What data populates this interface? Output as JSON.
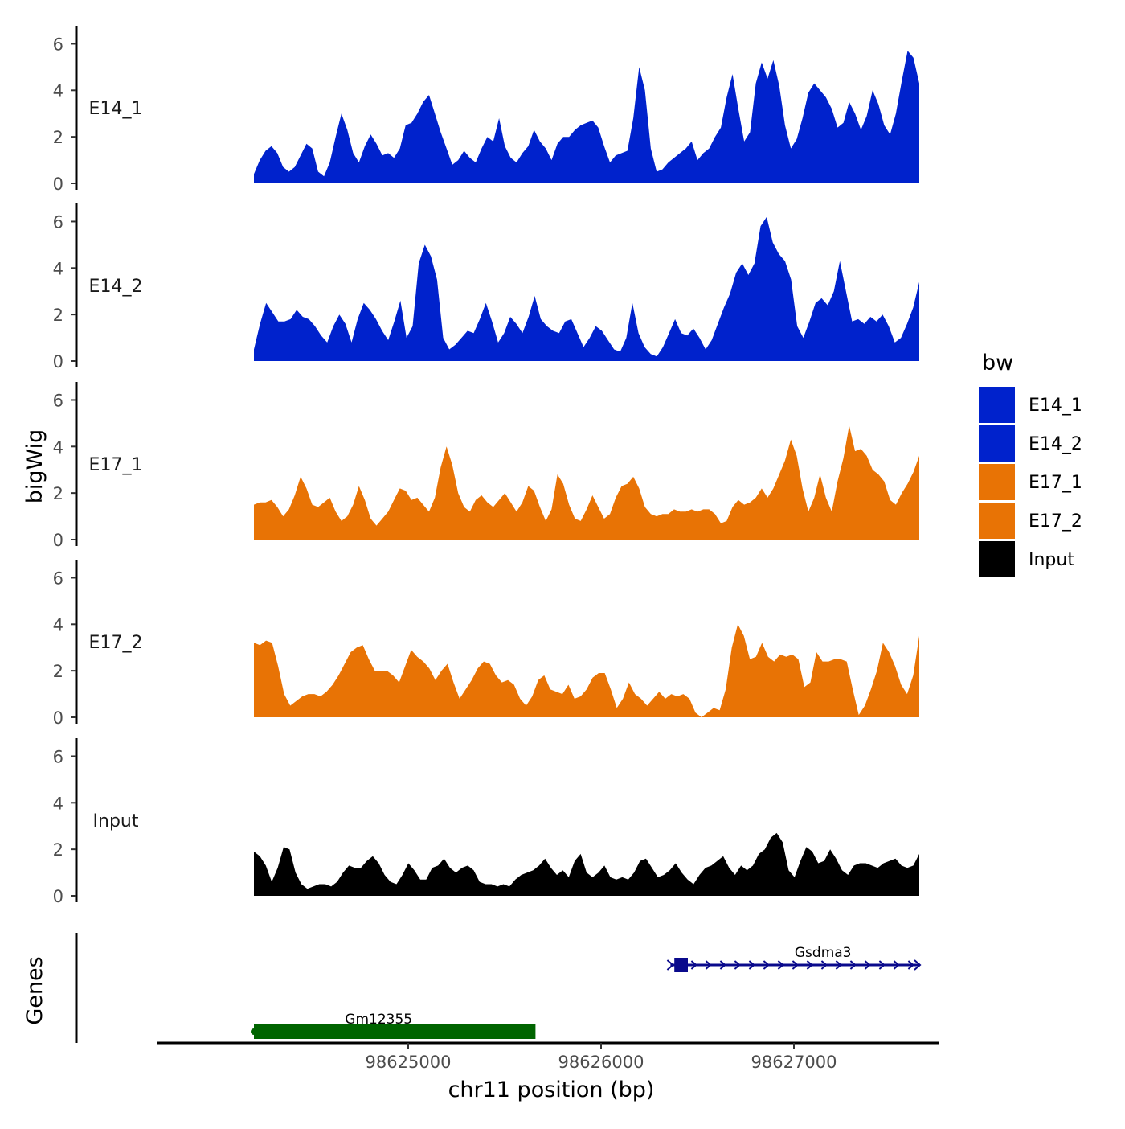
{
  "chart_data": {
    "type": "area",
    "ylabel": "bigWig",
    "xlabel": "chr11 position (bp)",
    "y_ticks": [
      "0",
      "2",
      "4",
      "6"
    ],
    "ylim": [
      0,
      6.5
    ],
    "x_ticks": [
      "98625000",
      "98626000",
      "98627000"
    ],
    "x_tick_values": [
      98625000,
      98626000,
      98627000
    ],
    "xlim": [
      98623700,
      98627750
    ],
    "region": [
      98624200,
      98627650
    ],
    "legend": {
      "title": "bw",
      "items": [
        {
          "label": "E14_1",
          "color": "#0022cc"
        },
        {
          "label": "E14_2",
          "color": "#0022cc"
        },
        {
          "label": "E17_1",
          "color": "#e87305"
        },
        {
          "label": "E17_2",
          "color": "#e87305"
        },
        {
          "label": "Input",
          "color": "#000000"
        }
      ]
    },
    "tracks": [
      {
        "name": "E14_1",
        "color": "#0022cc",
        "values": [
          0.4,
          1.0,
          1.4,
          1.6,
          1.3,
          0.7,
          0.5,
          0.7,
          1.2,
          1.7,
          1.5,
          0.5,
          0.3,
          0.9,
          2.0,
          3.0,
          2.3,
          1.3,
          0.9,
          1.6,
          2.1,
          1.7,
          1.2,
          1.3,
          1.1,
          1.5,
          2.5,
          2.6,
          3.0,
          3.5,
          3.8,
          3.0,
          2.2,
          1.5,
          0.8,
          1.0,
          1.4,
          1.1,
          0.9,
          1.5,
          2.0,
          1.8,
          2.8,
          1.6,
          1.1,
          0.9,
          1.3,
          1.6,
          2.3,
          1.8,
          1.5,
          1.0,
          1.7,
          2.0,
          2.0,
          2.3,
          2.5,
          2.6,
          2.7,
          2.4,
          1.6,
          0.9,
          1.2,
          1.3,
          1.4,
          2.8,
          5.0,
          4.0,
          1.5,
          0.5,
          0.6,
          0.9,
          1.1,
          1.3,
          1.5,
          1.8,
          1.0,
          1.3,
          1.5,
          2.0,
          2.4,
          3.7,
          4.7,
          3.2,
          1.8,
          2.2,
          4.3,
          5.2,
          4.5,
          5.3,
          4.2,
          2.5,
          1.5,
          1.9,
          2.8,
          3.9,
          4.3,
          4.0,
          3.7,
          3.2,
          2.4,
          2.6,
          3.5,
          3.0,
          2.3,
          2.9,
          4.0,
          3.4,
          2.5,
          2.1,
          3.0,
          4.4,
          5.7,
          5.4,
          4.3
        ]
      },
      {
        "name": "E14_2",
        "color": "#0022cc",
        "values": [
          0.5,
          1.6,
          2.5,
          2.1,
          1.7,
          1.7,
          1.8,
          2.2,
          1.9,
          1.8,
          1.5,
          1.1,
          0.8,
          1.5,
          2.0,
          1.6,
          0.8,
          1.8,
          2.5,
          2.2,
          1.8,
          1.3,
          0.9,
          1.7,
          2.6,
          1.0,
          1.5,
          4.2,
          5.0,
          4.5,
          3.5,
          1.0,
          0.5,
          0.7,
          1.0,
          1.3,
          1.2,
          1.8,
          2.5,
          1.7,
          0.8,
          1.2,
          1.9,
          1.6,
          1.2,
          1.9,
          2.8,
          1.8,
          1.5,
          1.3,
          1.2,
          1.7,
          1.8,
          1.2,
          0.6,
          1.0,
          1.5,
          1.3,
          0.9,
          0.5,
          0.4,
          1.0,
          2.5,
          1.2,
          0.6,
          0.3,
          0.2,
          0.6,
          1.2,
          1.8,
          1.2,
          1.1,
          1.4,
          1.0,
          0.5,
          0.9,
          1.6,
          2.3,
          2.9,
          3.8,
          4.2,
          3.7,
          4.2,
          5.8,
          6.2,
          5.1,
          4.6,
          4.3,
          3.5,
          1.5,
          1.0,
          1.7,
          2.5,
          2.7,
          2.4,
          3.0,
          4.3,
          3.0,
          1.7,
          1.8,
          1.6,
          1.9,
          1.7,
          2.0,
          1.5,
          0.8,
          1.0,
          1.6,
          2.3,
          3.4
        ]
      },
      {
        "name": "E17_1",
        "color": "#e87305",
        "values": [
          1.5,
          1.6,
          1.6,
          1.7,
          1.4,
          1.0,
          1.3,
          1.9,
          2.7,
          2.2,
          1.5,
          1.4,
          1.6,
          1.8,
          1.2,
          0.8,
          1.0,
          1.5,
          2.3,
          1.7,
          0.9,
          0.6,
          0.9,
          1.2,
          1.7,
          2.2,
          2.1,
          1.7,
          1.8,
          1.5,
          1.2,
          1.8,
          3.1,
          4.0,
          3.2,
          2.0,
          1.4,
          1.2,
          1.7,
          1.9,
          1.6,
          1.4,
          1.7,
          2.0,
          1.6,
          1.2,
          1.6,
          2.3,
          2.1,
          1.4,
          0.8,
          1.3,
          2.8,
          2.4,
          1.5,
          0.9,
          0.8,
          1.3,
          1.9,
          1.4,
          0.9,
          1.1,
          1.8,
          2.3,
          2.4,
          2.7,
          2.2,
          1.4,
          1.1,
          1.0,
          1.1,
          1.1,
          1.3,
          1.2,
          1.2,
          1.3,
          1.2,
          1.3,
          1.3,
          1.1,
          0.7,
          0.8,
          1.4,
          1.7,
          1.5,
          1.6,
          1.8,
          2.2,
          1.8,
          2.2,
          2.8,
          3.4,
          4.3,
          3.6,
          2.2,
          1.2,
          1.8,
          2.8,
          1.8,
          1.2,
          2.5,
          3.5,
          4.9,
          3.8,
          3.9,
          3.6,
          3.0,
          2.8,
          2.5,
          1.7,
          1.5,
          2.0,
          2.4,
          2.9,
          3.6
        ]
      },
      {
        "name": "E17_2",
        "color": "#e87305",
        "values": [
          3.2,
          3.1,
          3.3,
          3.2,
          2.2,
          1.0,
          0.5,
          0.7,
          0.9,
          1.0,
          1.0,
          0.9,
          1.1,
          1.4,
          1.8,
          2.3,
          2.8,
          3.0,
          3.1,
          2.5,
          2.0,
          2.0,
          2.0,
          1.8,
          1.5,
          2.2,
          2.9,
          2.6,
          2.4,
          2.1,
          1.6,
          2.0,
          2.3,
          1.5,
          0.8,
          1.2,
          1.6,
          2.1,
          2.4,
          2.3,
          1.8,
          1.5,
          1.6,
          1.4,
          0.8,
          0.5,
          0.9,
          1.6,
          1.8,
          1.2,
          1.1,
          1.0,
          1.4,
          0.8,
          0.9,
          1.2,
          1.7,
          1.9,
          1.9,
          1.2,
          0.4,
          0.8,
          1.5,
          1.0,
          0.8,
          0.5,
          0.8,
          1.1,
          0.8,
          1.0,
          0.9,
          1.0,
          0.8,
          0.2,
          0.0,
          0.2,
          0.4,
          0.3,
          1.2,
          3.0,
          4.0,
          3.5,
          2.5,
          2.6,
          3.2,
          2.6,
          2.4,
          2.7,
          2.6,
          2.7,
          2.5,
          1.3,
          1.5,
          2.8,
          2.4,
          2.4,
          2.5,
          2.5,
          2.4,
          1.2,
          0.1,
          0.5,
          1.2,
          2.0,
          3.2,
          2.8,
          2.2,
          1.4,
          1.0,
          1.8,
          3.5
        ]
      },
      {
        "name": "Input",
        "color": "#000000",
        "values": [
          1.9,
          1.7,
          1.3,
          0.6,
          1.2,
          2.1,
          2.0,
          1.0,
          0.5,
          0.3,
          0.4,
          0.5,
          0.5,
          0.4,
          0.6,
          1.0,
          1.3,
          1.2,
          1.2,
          1.5,
          1.7,
          1.4,
          0.9,
          0.6,
          0.5,
          0.9,
          1.4,
          1.1,
          0.7,
          0.7,
          1.2,
          1.3,
          1.6,
          1.2,
          1.0,
          1.2,
          1.3,
          1.1,
          0.6,
          0.5,
          0.5,
          0.4,
          0.5,
          0.4,
          0.7,
          0.9,
          1.0,
          1.1,
          1.3,
          1.6,
          1.2,
          0.9,
          1.1,
          0.8,
          1.5,
          1.8,
          1.0,
          0.8,
          1.0,
          1.3,
          0.8,
          0.7,
          0.8,
          0.7,
          1.0,
          1.5,
          1.6,
          1.2,
          0.8,
          0.9,
          1.1,
          1.4,
          1.0,
          0.7,
          0.5,
          0.9,
          1.2,
          1.3,
          1.5,
          1.7,
          1.2,
          0.9,
          1.3,
          1.1,
          1.3,
          1.8,
          2.0,
          2.5,
          2.7,
          2.3,
          1.1,
          0.8,
          1.5,
          2.1,
          1.9,
          1.4,
          1.5,
          2.0,
          1.6,
          1.1,
          0.9,
          1.3,
          1.4,
          1.4,
          1.3,
          1.2,
          1.4,
          1.5,
          1.6,
          1.3,
          1.2,
          1.3,
          1.8
        ]
      }
    ],
    "genes": {
      "label": "Genes",
      "items": [
        {
          "name": "Gsdma3",
          "start": 98626360,
          "end": 98627650,
          "strand": "+",
          "color": "#0a0a8c",
          "exon": [
            98626380,
            98626450
          ]
        },
        {
          "name": "Gm12355",
          "start": 98624200,
          "end": 98625660,
          "strand": "-",
          "color": "#006400"
        }
      ]
    }
  }
}
